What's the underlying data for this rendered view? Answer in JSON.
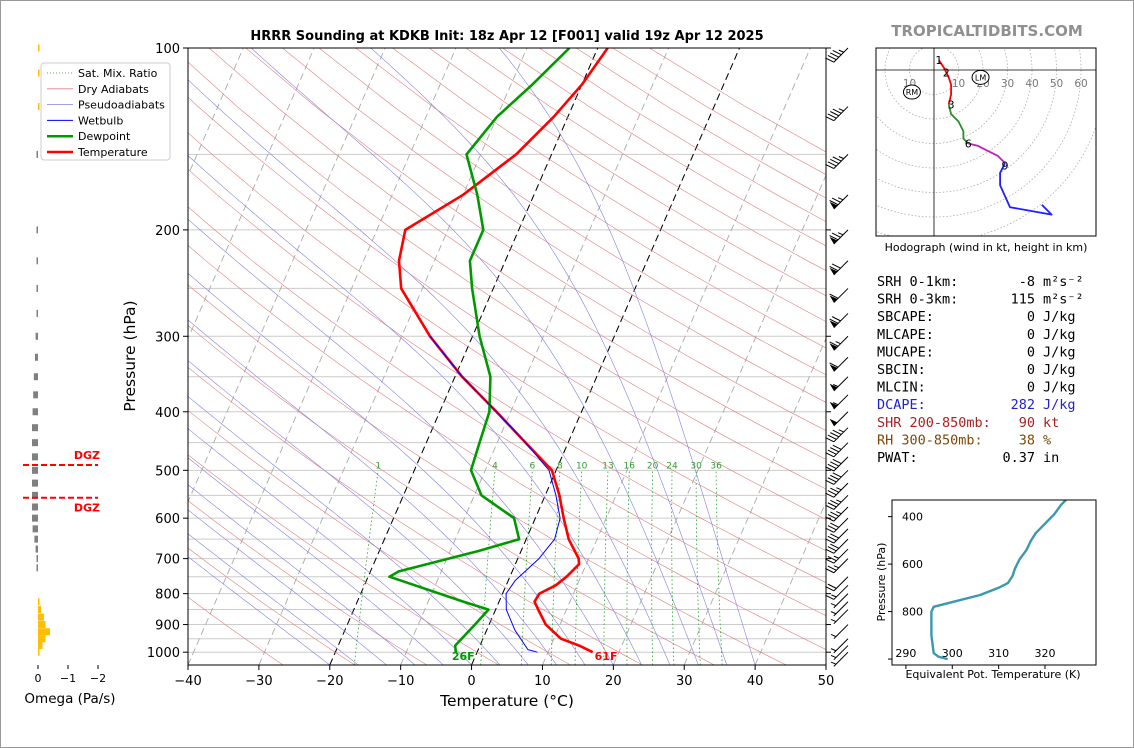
{
  "brand": "TROPICALTIDBITS.COM",
  "chart_data": [
    {
      "type": "line",
      "name": "skewt",
      "title": "HRRR Sounding at KDKB Init: 18z Apr 12 [F001] valid 19z Apr 12 2025",
      "xlabel": "Temperature (°C)",
      "ylabel": "Pressure (hPa)",
      "xlim": [
        -40,
        50
      ],
      "ylim": [
        1050,
        100
      ],
      "y_scale": "log",
      "x_ticks": [
        "−40",
        "−30",
        "−20",
        "−10",
        "0",
        "10",
        "20",
        "30",
        "40",
        "50"
      ],
      "y_ticks": [
        "100",
        "200",
        "300",
        "400",
        "500",
        "600",
        "700",
        "800",
        "900",
        "1000"
      ],
      "legend": [
        "Sat. Mix. Ratio",
        "Dry Adiabats",
        "Pseudoadiabats",
        "Wetbulb",
        "Dewpoint",
        "Temperature"
      ],
      "legend_position": "top-left",
      "mix_ratio_labels": [
        "1",
        "4",
        "6",
        "8",
        "10",
        "13",
        "16",
        "20",
        "24",
        "30",
        "36"
      ],
      "surface_temp_label": "61F",
      "surface_dew_label": "26F",
      "series": [
        {
          "name": "Temperature",
          "color": "#ff0000",
          "points": [
            [
              16.3,
              1000
            ],
            [
              14,
              975
            ],
            [
              11,
              950
            ],
            [
              8,
              900
            ],
            [
              6,
              850
            ],
            [
              5,
              825
            ],
            [
              5.2,
              800
            ],
            [
              7,
              775
            ],
            [
              8,
              750
            ],
            [
              9,
              715
            ],
            [
              8.6,
              700
            ],
            [
              6,
              650
            ],
            [
              4,
              600
            ],
            [
              2,
              550
            ],
            [
              -0.6,
              500
            ],
            [
              -6,
              450
            ],
            [
              -12,
              400
            ],
            [
              -19,
              350
            ],
            [
              -26,
              300
            ],
            [
              -33,
              250
            ],
            [
              -35,
              225
            ],
            [
              -36,
              200
            ],
            [
              -30,
              175
            ],
            [
              -25,
              150
            ],
            [
              -22,
              130
            ],
            [
              -20,
              115
            ],
            [
              -18.6,
              100
            ]
          ]
        },
        {
          "name": "Dewpoint",
          "color": "#009900",
          "points": [
            [
              -3,
              1000
            ],
            [
              -3.5,
              975
            ],
            [
              -2,
              900
            ],
            [
              -1,
              850
            ],
            [
              -5,
              825
            ],
            [
              -17,
              750
            ],
            [
              -16,
              735
            ],
            [
              -6,
              680
            ],
            [
              -1,
              650
            ],
            [
              -3,
              600
            ],
            [
              -9,
              550
            ],
            [
              -12,
              500
            ],
            [
              -12.5,
              450
            ],
            [
              -13,
              400
            ],
            [
              -15,
              350
            ],
            [
              -19,
              300
            ],
            [
              -23,
              250
            ],
            [
              -25,
              225
            ],
            [
              -25,
              200
            ],
            [
              -28,
              175
            ],
            [
              -32,
              150
            ],
            [
              -30,
              130
            ],
            [
              -27,
              115
            ],
            [
              -24,
              100
            ]
          ]
        },
        {
          "name": "Wetbulb",
          "color": "#0000ff",
          "points": [
            [
              8.5,
              1000
            ],
            [
              7,
              990
            ],
            [
              4,
              920
            ],
            [
              1.5,
              850
            ],
            [
              0.5,
              800
            ],
            [
              1,
              760
            ],
            [
              3,
              700
            ],
            [
              4,
              650
            ],
            [
              3.5,
              600
            ],
            [
              1.5,
              550
            ],
            [
              -1,
              500
            ],
            [
              -6,
              450
            ],
            [
              -12,
              400
            ],
            [
              -19,
              350
            ],
            [
              -26,
              300
            ]
          ]
        }
      ]
    },
    {
      "type": "bar",
      "name": "omega",
      "xlabel": "Omega (Pa/s)",
      "x_ticks": [
        "0",
        "−1",
        "−2"
      ],
      "annotations": [
        "DGZ",
        "DGZ"
      ],
      "colors": {
        "upward": "#808080",
        "downward": "#ffbf00"
      },
      "levels": [
        1000,
        975,
        950,
        925,
        900,
        875,
        850,
        825,
        725,
        700,
        675,
        650,
        625,
        600,
        575,
        550,
        525,
        500,
        475,
        450,
        425,
        400,
        375,
        350,
        325,
        300,
        275,
        250,
        225,
        200,
        150,
        125,
        110,
        100
      ],
      "values": [
        -0.05,
        -0.15,
        -0.25,
        -0.4,
        -0.25,
        -0.2,
        -0.1,
        -0.05,
        0.05,
        0.05,
        0.08,
        0.12,
        0.18,
        0.2,
        0.2,
        0.2,
        0.2,
        0.2,
        0.2,
        0.2,
        0.2,
        0.18,
        0.16,
        0.14,
        0.1,
        0.08,
        0.04,
        0.03,
        0.03,
        0.03,
        0.02,
        -0.02,
        -0.02,
        -0.02
      ],
      "dgz_top": 490,
      "dgz_bottom": 555
    },
    {
      "type": "line",
      "name": "hodograph",
      "xlabel": "Hodograph (wind in kt, height in km)",
      "ring_labels": [
        "10",
        "20",
        "30",
        "40",
        "50",
        "60"
      ],
      "left_label": "10",
      "height_labels": [
        "1",
        "2",
        "3",
        "6",
        "9"
      ],
      "markers": [
        "RM",
        "LM"
      ],
      "segments": [
        {
          "color": "#ff0000",
          "points": [
            [
              2,
              4
            ],
            [
              4,
              1
            ],
            [
              6,
              -3
            ],
            [
              7,
              -6
            ],
            [
              7,
              -10
            ],
            [
              6,
              -14
            ]
          ]
        },
        {
          "color": "#2e8b2e",
          "points": [
            [
              6,
              -14
            ],
            [
              7,
              -18
            ],
            [
              10,
              -21
            ],
            [
              12,
              -25
            ],
            [
              12,
              -28
            ],
            [
              14,
              -30
            ]
          ]
        },
        {
          "color": "#bb22bb",
          "points": [
            [
              14,
              -30
            ],
            [
              18,
              -31
            ],
            [
              22,
              -33
            ],
            [
              26,
              -35
            ],
            [
              29,
              -38
            ]
          ]
        },
        {
          "color": "#1f1fff",
          "points": [
            [
              29,
              -38
            ],
            [
              27,
              -42
            ],
            [
              27,
              -47
            ],
            [
              31,
              -56
            ],
            [
              48,
              -59
            ],
            [
              44,
              -55
            ]
          ]
        }
      ],
      "rm_uv": [
        -9,
        -9
      ],
      "lm_uv": [
        19,
        -3
      ],
      "height_uv": [
        [
          2,
          4
        ],
        [
          5,
          -1
        ],
        [
          7,
          -14
        ],
        [
          14,
          -30
        ],
        [
          29,
          -39
        ]
      ]
    },
    {
      "type": "line",
      "name": "theta-e",
      "xlabel": "Equivalent Pot. Temperature (K)",
      "ylabel": "Pressure (hPa)",
      "x_ticks": [
        "290",
        "300",
        "310",
        "320"
      ],
      "y_ticks": [
        "400",
        "600",
        "800",
        ""
      ],
      "xlim": [
        287,
        331
      ],
      "ylim": [
        1025,
        330
      ],
      "color": "#3a98b0",
      "points": [
        [
          299,
          1000
        ],
        [
          297,
          990
        ],
        [
          296,
          975
        ],
        [
          295.5,
          900
        ],
        [
          295.5,
          800
        ],
        [
          296,
          780
        ],
        [
          300,
          760
        ],
        [
          306,
          730
        ],
        [
          310,
          700
        ],
        [
          312,
          680
        ],
        [
          313,
          650
        ],
        [
          313.5,
          620
        ],
        [
          314.5,
          580
        ],
        [
          316,
          540
        ],
        [
          317,
          500
        ],
        [
          318,
          470
        ],
        [
          320,
          430
        ],
        [
          322,
          390
        ],
        [
          323.5,
          350
        ],
        [
          324.5,
          330
        ]
      ]
    }
  ],
  "stats": [
    {
      "label": "SRH 0-1km:",
      "value": "-8",
      "unit": "m²s⁻²",
      "color": "#000000"
    },
    {
      "label": "SRH 0-3km:",
      "value": "115",
      "unit": "m²s⁻²",
      "color": "#000000"
    },
    {
      "label": "SBCAPE:",
      "value": "0",
      "unit": "J/kg",
      "color": "#000000"
    },
    {
      "label": "MLCAPE:",
      "value": "0",
      "unit": "J/kg",
      "color": "#000000"
    },
    {
      "label": "MUCAPE:",
      "value": "0",
      "unit": "J/kg",
      "color": "#000000"
    },
    {
      "label": "SBCIN:",
      "value": "0",
      "unit": "J/kg",
      "color": "#000000"
    },
    {
      "label": "MLCIN:",
      "value": "0",
      "unit": "J/kg",
      "color": "#000000"
    },
    {
      "label": "DCAPE:",
      "value": "282",
      "unit": "J/kg",
      "color": "#2222cc"
    },
    {
      "label": "SHR 200-850mb:",
      "value": "90",
      "unit": "kt",
      "color": "#aa2222"
    },
    {
      "label": "RH 300-850mb:",
      "value": "38",
      "unit": "%",
      "color": "#7a4a0a"
    },
    {
      "label": "PWAT:",
      "value": "0.37",
      "unit": "in",
      "color": "#000000"
    }
  ],
  "wind_barbs": [
    {
      "p": 1000,
      "kt": 5
    },
    {
      "p": 975,
      "kt": 5
    },
    {
      "p": 950,
      "kt": 5
    },
    {
      "p": 900,
      "kt": 5
    },
    {
      "p": 850,
      "kt": 5
    },
    {
      "p": 825,
      "kt": 5
    },
    {
      "p": 800,
      "kt": 5
    },
    {
      "p": 775,
      "kt": 15
    },
    {
      "p": 750,
      "kt": 20
    },
    {
      "p": 700,
      "kt": 25
    },
    {
      "p": 675,
      "kt": 25
    },
    {
      "p": 650,
      "kt": 30
    },
    {
      "p": 625,
      "kt": 30
    },
    {
      "p": 600,
      "kt": 30
    },
    {
      "p": 575,
      "kt": 35
    },
    {
      "p": 550,
      "kt": 35
    },
    {
      "p": 525,
      "kt": 35
    },
    {
      "p": 500,
      "kt": 40
    },
    {
      "p": 475,
      "kt": 40
    },
    {
      "p": 450,
      "kt": 40
    },
    {
      "p": 425,
      "kt": 45
    },
    {
      "p": 400,
      "kt": 50
    },
    {
      "p": 375,
      "kt": 55
    },
    {
      "p": 350,
      "kt": 55
    },
    {
      "p": 325,
      "kt": 60
    },
    {
      "p": 300,
      "kt": 65
    },
    {
      "p": 275,
      "kt": 70
    },
    {
      "p": 250,
      "kt": 60
    },
    {
      "p": 225,
      "kt": 70
    },
    {
      "p": 200,
      "kt": 75
    },
    {
      "p": 175,
      "kt": 75
    },
    {
      "p": 150,
      "kt": 45
    },
    {
      "p": 125,
      "kt": 45
    },
    {
      "p": 100,
      "kt": 45
    }
  ]
}
